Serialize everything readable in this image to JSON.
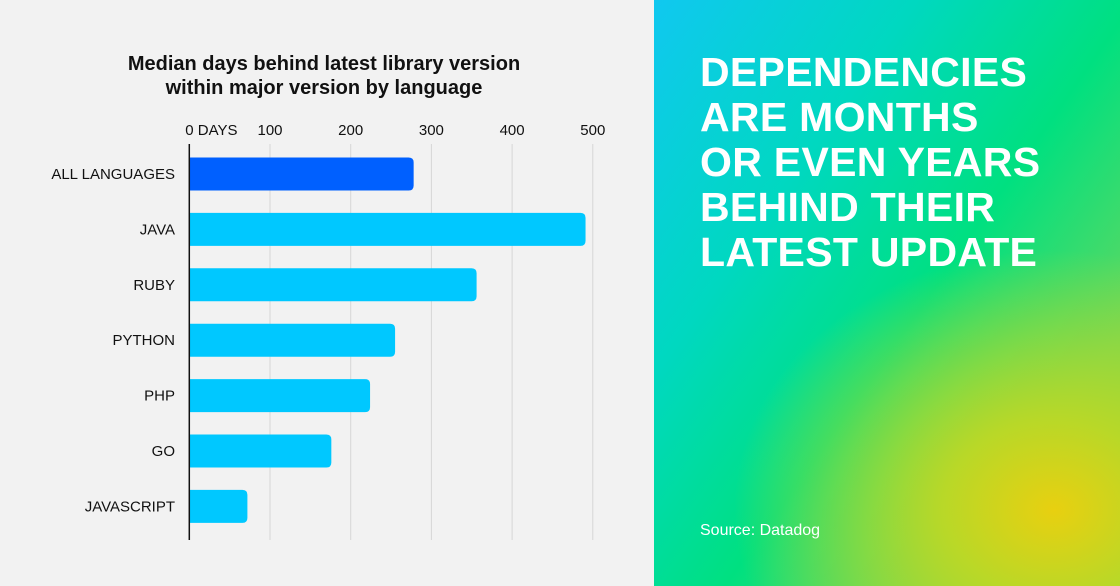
{
  "chart_data": {
    "type": "bar",
    "orientation": "horizontal",
    "title": "Median days behind latest library version within major version by language",
    "title_lines": [
      "Median days behind latest library version",
      "within major version by language"
    ],
    "categories": [
      "ALL LANGUAGES",
      "JAVA",
      "RUBY",
      "PYTHON",
      "PHP",
      "GO",
      "JAVASCRIPT"
    ],
    "values": [
      278,
      491,
      356,
      255,
      224,
      176,
      72
    ],
    "xlim": [
      0,
      520
    ],
    "x_ticks": [
      0,
      100,
      200,
      300,
      400,
      500
    ],
    "x_tick_labels": [
      "0 DAYS",
      "100",
      "200",
      "300",
      "400",
      "500"
    ],
    "xlabel": "",
    "ylabel": "",
    "grid": "vertical",
    "colors": {
      "highlight": "#0060ff",
      "bar": "#00c8ff"
    }
  },
  "panel": {
    "headline_lines": [
      "DEPENDENCIES",
      "ARE MONTHS",
      "OR EVEN YEARS",
      "BEHIND THEIR",
      "LATEST UPDATE"
    ],
    "source": "Source: Datadog"
  }
}
